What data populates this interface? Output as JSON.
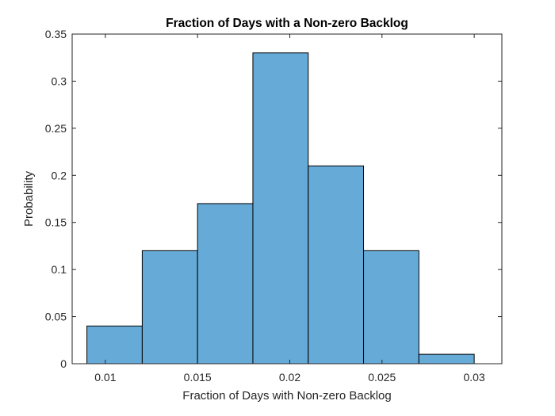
{
  "chart_data": {
    "type": "bar",
    "title": "Fraction of Days with a Non-zero Backlog",
    "xlabel": "Fraction of Days with Non-zero Backlog",
    "ylabel": "Probability",
    "xlim": [
      0.0082,
      0.0315
    ],
    "ylim": [
      0,
      0.35
    ],
    "bins": [
      {
        "start": 0.009,
        "end": 0.012,
        "value": 0.04
      },
      {
        "start": 0.012,
        "end": 0.015,
        "value": 0.12
      },
      {
        "start": 0.015,
        "end": 0.018,
        "value": 0.17
      },
      {
        "start": 0.018,
        "end": 0.021,
        "value": 0.33
      },
      {
        "start": 0.021,
        "end": 0.024,
        "value": 0.21
      },
      {
        "start": 0.024,
        "end": 0.027,
        "value": 0.12
      },
      {
        "start": 0.027,
        "end": 0.03,
        "value": 0.01
      }
    ],
    "xticks": [
      0.01,
      0.015,
      0.02,
      0.025,
      0.03
    ],
    "xtick_labels": [
      "0.01",
      "0.015",
      "0.02",
      "0.025",
      "0.03"
    ],
    "yticks": [
      0,
      0.05,
      0.1,
      0.15,
      0.2,
      0.25,
      0.3,
      0.35
    ],
    "ytick_labels": [
      "0",
      "0.05",
      "0.1",
      "0.15",
      "0.2",
      "0.25",
      "0.3",
      "0.35"
    ],
    "bar_color": "#66aad8",
    "edge_color": "#000000",
    "grid": false
  }
}
